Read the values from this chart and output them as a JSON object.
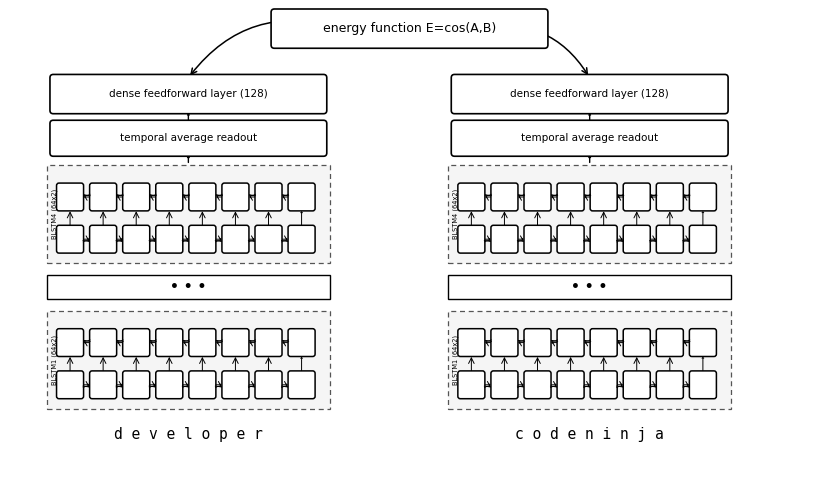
{
  "title": "energy function E=cos(A,B)",
  "dense_label": "dense feedforward layer (128)",
  "readout_label": "temporal average readout",
  "dots_label": "• • •",
  "blstm4_label": "BLSTM4 (64x2)",
  "blstm1_label": "BLSTM1 (64x2)",
  "left_word": "d e v e l o p e r",
  "right_word": "c o d e n i n j a",
  "bg_color": "#ffffff",
  "num_cells": 8
}
